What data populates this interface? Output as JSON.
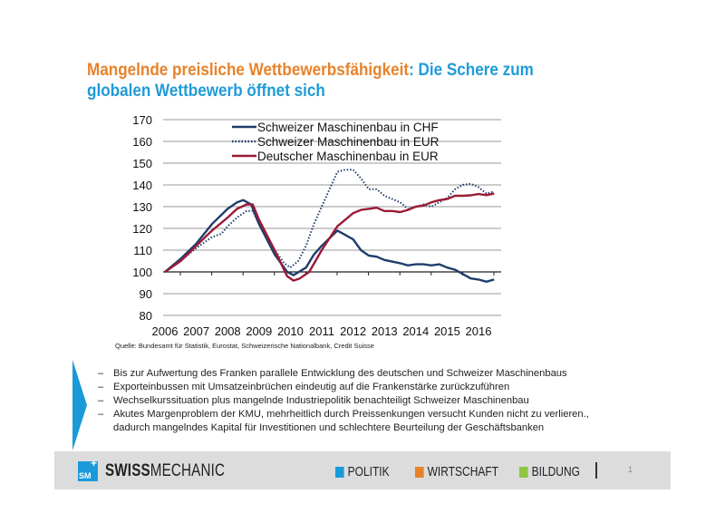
{
  "title": {
    "part1": "Mangelnde preisliche Wettbewerbsfähigkeit",
    "part2": ": Die Schere zum globalen Wettbewerb öffnet sich"
  },
  "colors": {
    "orange": "#e8822a",
    "blue": "#1f9bd8",
    "navy": "#1f3d6b",
    "red": "#9b1b36"
  },
  "chart_data": {
    "type": "line",
    "title": "",
    "xlabel": "",
    "ylabel": "",
    "xlim": [
      2006,
      2016.5
    ],
    "ylim": [
      80,
      170
    ],
    "yticks": [
      80,
      90,
      100,
      110,
      120,
      130,
      140,
      150,
      160,
      170
    ],
    "xticks": [
      2006,
      2007,
      2008,
      2009,
      2010,
      2011,
      2012,
      2013,
      2014,
      2015,
      2016
    ],
    "grid": "horizontal",
    "legend": "top",
    "series": [
      {
        "name": "Schweizer Maschinenbau in CHF",
        "color": "#1f3d6b",
        "style": "solid",
        "x": [
          2006,
          2006.5,
          2007,
          2007.5,
          2008,
          2008.3,
          2008.5,
          2008.75,
          2009,
          2009.5,
          2009.9,
          2010.1,
          2010.5,
          2010.75,
          2011,
          2011.5,
          2012,
          2012.25,
          2012.5,
          2012.75,
          2013,
          2013.5,
          2013.75,
          2014,
          2014.25,
          2014.5,
          2014.75,
          2015,
          2015.25,
          2015.75,
          2016,
          2016.25,
          2016.5
        ],
        "y": [
          100,
          106,
          113,
          122,
          129,
          132,
          133,
          131,
          122,
          108,
          100,
          98.5,
          102,
          108,
          112,
          119,
          115,
          110,
          107.5,
          107,
          105.5,
          104,
          103,
          103.5,
          103.5,
          103,
          103.5,
          102,
          101,
          97,
          96.5,
          95.5,
          96.5
        ]
      },
      {
        "name": "Schweizer Maschinenbau in EUR",
        "color": "#1f3d6b",
        "style": "dotted",
        "x": [
          2006,
          2006.5,
          2007,
          2007.5,
          2007.8,
          2008,
          2008.3,
          2008.6,
          2008.8,
          2009,
          2009.5,
          2009.8,
          2010,
          2010.25,
          2010.5,
          2010.75,
          2011,
          2011.25,
          2011.5,
          2011.75,
          2012,
          2012.25,
          2012.5,
          2012.75,
          2013,
          2013.5,
          2013.75,
          2014,
          2014.25,
          2014.5,
          2014.75,
          2015,
          2015.25,
          2015.5,
          2015.75,
          2016,
          2016.25,
          2016.5
        ],
        "y": [
          100,
          105,
          111,
          116,
          117.5,
          121,
          125,
          128,
          128,
          122,
          110,
          104,
          102,
          105,
          112,
          122,
          130,
          138,
          146,
          147,
          147,
          143,
          138,
          138,
          135,
          132,
          129,
          130,
          131,
          130,
          132,
          134,
          138,
          140,
          140.5,
          139,
          136,
          137
        ]
      },
      {
        "name": "Deutscher Maschinenbau in EUR",
        "color": "#9b1b36",
        "style": "solid",
        "x": [
          2006,
          2006.5,
          2007,
          2007.5,
          2008,
          2008.3,
          2008.6,
          2008.8,
          2009,
          2009.5,
          2009.9,
          2010.1,
          2010.3,
          2010.6,
          2011,
          2011.5,
          2011.75,
          2012,
          2012.25,
          2012.5,
          2012.75,
          2013,
          2013.25,
          2013.5,
          2013.75,
          2014,
          2014.25,
          2014.5,
          2014.75,
          2015,
          2015.25,
          2015.5,
          2015.75,
          2016,
          2016.25,
          2016.5
        ],
        "y": [
          100,
          105,
          112,
          119,
          125,
          129,
          131,
          131,
          124,
          110,
          98,
          96,
          97,
          100,
          110,
          121,
          124,
          127,
          128.5,
          129,
          129.5,
          128,
          128,
          127.5,
          128.5,
          130,
          130.5,
          132,
          133,
          133.5,
          135,
          135,
          135.2,
          135.8,
          135.3,
          136
        ]
      }
    ]
  },
  "source": "Quelle: Bundesamt für Statistik, Eurostat, Schweizerische Nationalbank, Credit Suisse",
  "bullets": [
    "Bis zur Aufwertung des Franken parallele Entwicklung des deutschen und Schweizer Maschinenbaus",
    "Exporteinbussen mit Umsatzeinbrüchen eindeutig auf die Frankenstärke zurückzuführen",
    "Wechselkurssituation plus mangelnde Industriepolitik benachteiligt Schweizer Maschinenbau",
    "Akutes Margenproblem der KMU, mehrheitlich durch Preissenkungen versucht Kunden nicht zu verlieren., dadurch mangelndes Kapital für Investitionen und schlechtere Beurteilung der Geschäftsbanken"
  ],
  "bullet_dash": "–",
  "footer": {
    "logo_text": "SM",
    "brand_bold": "SWISS",
    "brand_light": "MECHANIC",
    "nav": [
      {
        "label": "POLITIK",
        "icon": "person-icon",
        "color": "#1a9ad8"
      },
      {
        "label": "WIRTSCHAFT",
        "icon": "bar-chart-icon",
        "color": "#e8822a"
      },
      {
        "label": "BILDUNG",
        "icon": "book-icon",
        "color": "#8dc63f"
      }
    ],
    "page_number": "1"
  }
}
